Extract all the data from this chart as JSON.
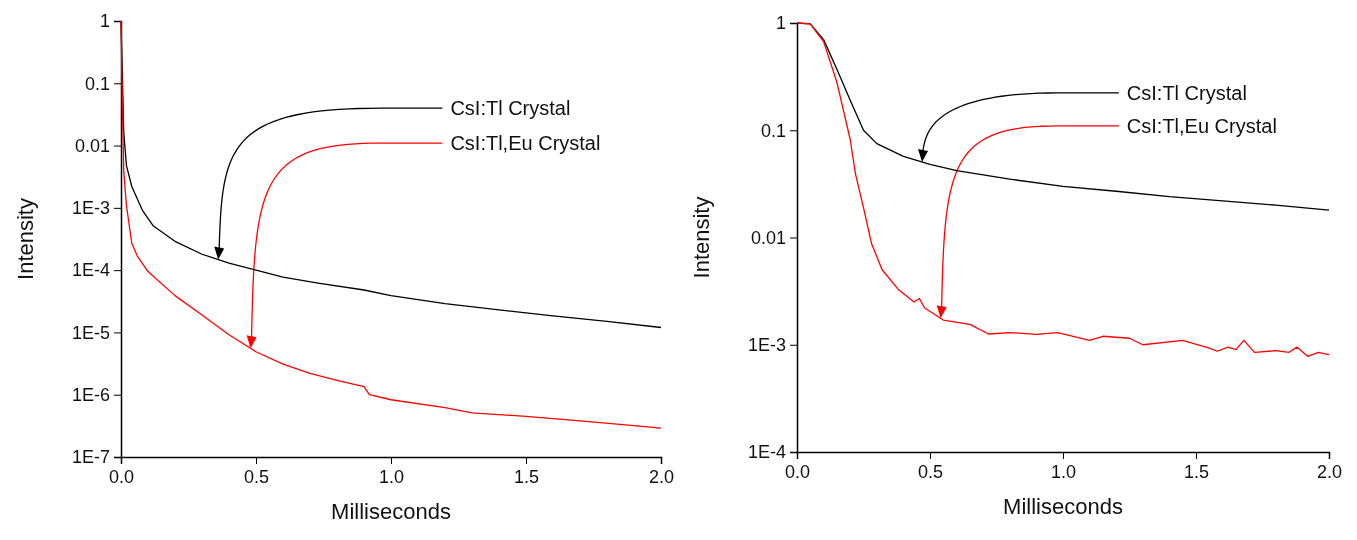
{
  "chart_data": [
    {
      "type": "line",
      "xlabel": "Milliseconds",
      "ylabel": "Intensity",
      "log": "y",
      "grid": false,
      "xlim": [
        0,
        2
      ],
      "xticks": [
        {
          "value": 0,
          "label": "0.0"
        },
        {
          "value": 0.5,
          "label": "0.5"
        },
        {
          "value": 1,
          "label": "1.0"
        },
        {
          "value": 1.5,
          "label": "1.5"
        },
        {
          "value": 2,
          "label": "2.0"
        }
      ],
      "ylim": [
        1e-07,
        1
      ],
      "yticks": [
        1,
        0.1,
        0.01,
        {
          "value": 0.001,
          "label": "1E-3"
        },
        {
          "value": 0.0001,
          "label": "1E-4"
        },
        {
          "value": 1e-05,
          "label": "1E-5"
        },
        {
          "value": 1e-06,
          "label": "1E-6"
        },
        {
          "value": 1e-07,
          "label": "1E-7"
        }
      ],
      "series": [
        {
          "color": "#000000",
          "x": [
            0,
            0.003,
            0.01,
            0.02,
            0.04,
            0.08,
            0.12,
            0.2,
            0.3,
            0.4,
            0.5,
            0.6,
            0.73,
            0.9,
            1.0,
            1.2,
            1.4,
            1.6,
            1.8,
            2.0
          ],
          "values": [
            1,
            0.3,
            0.017,
            0.0048,
            0.0022,
            0.0009,
            0.00051,
            0.00029,
            0.00018,
            0.00013,
            0.0001,
            7.7e-05,
            6.2e-05,
            4.8e-05,
            3.9e-05,
            2.9e-05,
            2.3e-05,
            1.85e-05,
            1.5e-05,
            1.2e-05
          ]
        },
        {
          "color": "#ff0000",
          "x": [
            0,
            0.005,
            0.01,
            0.02,
            0.04,
            0.06,
            0.1,
            0.2,
            0.3,
            0.4,
            0.5,
            0.6,
            0.7,
            0.8,
            0.9,
            0.92,
            1.0,
            1.2,
            1.3,
            1.5,
            1.7,
            1.9,
            2.0
          ],
          "values": [
            1,
            0.05,
            0.004,
            0.0011,
            0.00027,
            0.00017,
            9.5e-05,
            3.9e-05,
            1.9e-05,
            9.2e-06,
            4.9e-06,
            3.1e-06,
            2.2e-06,
            1.7e-06,
            1.35e-06,
            1e-06,
            8.3e-07,
            6.2e-07,
            5.1e-07,
            4.5e-07,
            3.8e-07,
            3.2e-07,
            2.9e-07
          ]
        }
      ],
      "annotations": [
        "CsI:Tl Crystal",
        "CsI:Tl,Eu Crystal"
      ]
    },
    {
      "type": "line",
      "xlabel": "Milliseconds",
      "ylabel": "Intensity",
      "log": "y",
      "grid": false,
      "xlim": [
        0,
        2
      ],
      "xticks": [
        {
          "value": 0,
          "label": "0.0"
        },
        {
          "value": 0.5,
          "label": "0.5"
        },
        {
          "value": 1,
          "label": "1.0"
        },
        {
          "value": 1.5,
          "label": "1.5"
        },
        {
          "value": 2,
          "label": "2.0"
        }
      ],
      "ylim": [
        0.0001,
        1
      ],
      "yticks": [
        1,
        0.1,
        0.01,
        {
          "value": 0.001,
          "label": "1E-3"
        },
        {
          "value": 0.0001,
          "label": "1E-4"
        }
      ],
      "series": [
        {
          "color": "#000000",
          "x": [
            0,
            0.05,
            0.1,
            0.15,
            0.2,
            0.25,
            0.3,
            0.4,
            0.5,
            0.6,
            0.8,
            1.0,
            1.2,
            1.4,
            1.6,
            1.8,
            2.0
          ],
          "values": [
            1,
            0.98,
            0.7,
            0.37,
            0.19,
            0.1,
            0.075,
            0.057,
            0.048,
            0.042,
            0.035,
            0.03,
            0.027,
            0.024,
            0.022,
            0.02,
            0.018
          ]
        },
        {
          "color": "#ff0000",
          "x": [
            0,
            0.05,
            0.1,
            0.15,
            0.2,
            0.22,
            0.25,
            0.28,
            0.32,
            0.38,
            0.44,
            0.46,
            0.48,
            0.55,
            0.65,
            0.72,
            0.8,
            0.9,
            0.98,
            1.1,
            1.15,
            1.25,
            1.3,
            1.45,
            1.55,
            1.58,
            1.62,
            1.65,
            1.68,
            1.72,
            1.8,
            1.85,
            1.88,
            1.92,
            1.96,
            2.0
          ],
          "values": [
            1,
            0.98,
            0.67,
            0.28,
            0.082,
            0.039,
            0.019,
            0.0088,
            0.005,
            0.0033,
            0.0025,
            0.0027,
            0.0022,
            0.0017,
            0.00155,
            0.00126,
            0.0013,
            0.00125,
            0.0013,
            0.0011,
            0.0012,
            0.00115,
            0.001,
            0.0011,
            0.00093,
            0.00087,
            0.00095,
            0.0009,
            0.0011,
            0.00085,
            0.00088,
            0.00085,
            0.00095,
            0.00078,
            0.00085,
            0.00081
          ]
        }
      ],
      "annotations": [
        "CsI:Tl Crystal",
        "CsI:Tl,Eu Crystal"
      ]
    }
  ]
}
